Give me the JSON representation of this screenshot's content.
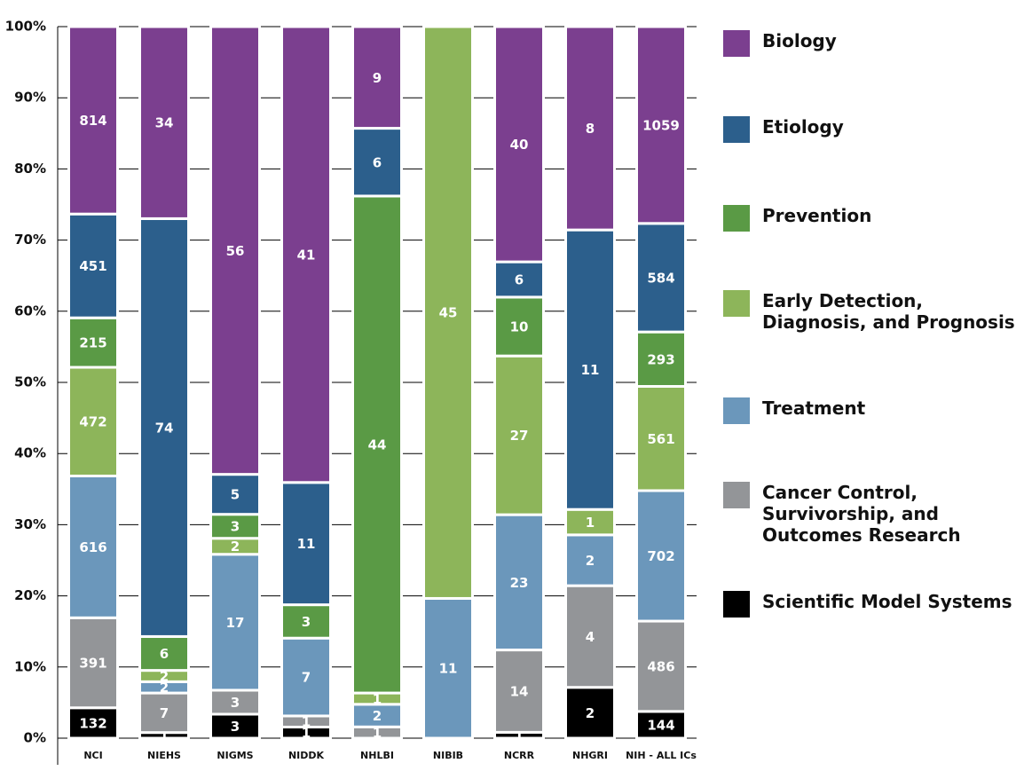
{
  "chart_data": {
    "type": "bar",
    "stacking": "percent",
    "categories": [
      "NCI",
      "NIEHS",
      "NIGMS",
      "NIDDK",
      "NHLBI",
      "NIBIB",
      "NCRR",
      "NHGRI",
      "NIH - ALL ICs"
    ],
    "series": [
      {
        "name": "Scientific Model Systems",
        "color": "#000000",
        "values": [
          132,
          1,
          3,
          1,
          null,
          null,
          1,
          2,
          144
        ]
      },
      {
        "name": "Cancer Control, Survivorship, and Outcomes Research",
        "color": "#939598",
        "values": [
          391,
          7,
          3,
          1,
          1,
          null,
          14,
          4,
          486
        ]
      },
      {
        "name": "Treatment",
        "color": "#6b97bb",
        "values": [
          616,
          2,
          17,
          7,
          2,
          11,
          23,
          2,
          702
        ]
      },
      {
        "name": "Early Detection, Diagnosis, and Prognosis",
        "color": "#8db55a",
        "values": [
          472,
          2,
          2,
          null,
          1,
          45,
          27,
          1,
          561
        ]
      },
      {
        "name": "Prevention",
        "color": "#5a9a45",
        "values": [
          215,
          6,
          3,
          3,
          44,
          null,
          10,
          null,
          293
        ]
      },
      {
        "name": "Etiology",
        "color": "#2c5f8c",
        "values": [
          451,
          74,
          5,
          11,
          6,
          null,
          6,
          11,
          584
        ]
      },
      {
        "name": "Biology",
        "color": "#7b3f8f",
        "values": [
          814,
          34,
          56,
          41,
          9,
          null,
          40,
          8,
          1059
        ]
      }
    ],
    "ylim": [
      0,
      100
    ],
    "yticks": [
      {
        "value": 0,
        "label": "0%"
      },
      {
        "value": 10,
        "label": "10%"
      },
      {
        "value": 20,
        "label": "20%"
      },
      {
        "value": 30,
        "label": "30%"
      },
      {
        "value": 40,
        "label": "40%"
      },
      {
        "value": 50,
        "label": "50%"
      },
      {
        "value": 60,
        "label": "60%"
      },
      {
        "value": 70,
        "label": "70%"
      },
      {
        "value": 80,
        "label": "80%"
      },
      {
        "value": 90,
        "label": "90%"
      },
      {
        "value": 100,
        "label": "100%"
      }
    ],
    "grid": true,
    "legend": "right"
  }
}
